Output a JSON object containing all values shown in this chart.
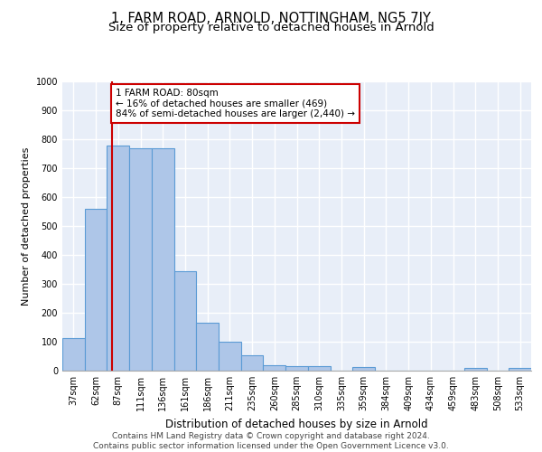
{
  "title": "1, FARM ROAD, ARNOLD, NOTTINGHAM, NG5 7JY",
  "subtitle": "Size of property relative to detached houses in Arnold",
  "xlabel": "Distribution of detached houses by size in Arnold",
  "ylabel": "Number of detached properties",
  "categories": [
    "37sqm",
    "62sqm",
    "87sqm",
    "111sqm",
    "136sqm",
    "161sqm",
    "186sqm",
    "211sqm",
    "235sqm",
    "260sqm",
    "285sqm",
    "310sqm",
    "335sqm",
    "359sqm",
    "384sqm",
    "409sqm",
    "434sqm",
    "459sqm",
    "483sqm",
    "508sqm",
    "533sqm"
  ],
  "values": [
    113,
    560,
    778,
    770,
    770,
    343,
    165,
    100,
    53,
    18,
    15,
    15,
    0,
    12,
    0,
    0,
    0,
    0,
    8,
    0,
    8
  ],
  "bar_color": "#aec6e8",
  "bar_edge_color": "#5b9bd5",
  "bar_edge_width": 0.8,
  "red_line_x": 1.73,
  "annotation_text": "1 FARM ROAD: 80sqm\n← 16% of detached houses are smaller (469)\n84% of semi-detached houses are larger (2,440) →",
  "annotation_box_color": "#ffffff",
  "annotation_box_edge_color": "#cc0000",
  "ylim": [
    0,
    1000
  ],
  "yticks": [
    0,
    100,
    200,
    300,
    400,
    500,
    600,
    700,
    800,
    900,
    1000
  ],
  "background_color": "#e8eef8",
  "grid_color": "#ffffff",
  "footer_line1": "Contains HM Land Registry data © Crown copyright and database right 2024.",
  "footer_line2": "Contains public sector information licensed under the Open Government Licence v3.0.",
  "title_fontsize": 10.5,
  "subtitle_fontsize": 9.5,
  "xlabel_fontsize": 8.5,
  "ylabel_fontsize": 8,
  "tick_fontsize": 7,
  "footer_fontsize": 6.5,
  "annotation_fontsize": 7.5
}
